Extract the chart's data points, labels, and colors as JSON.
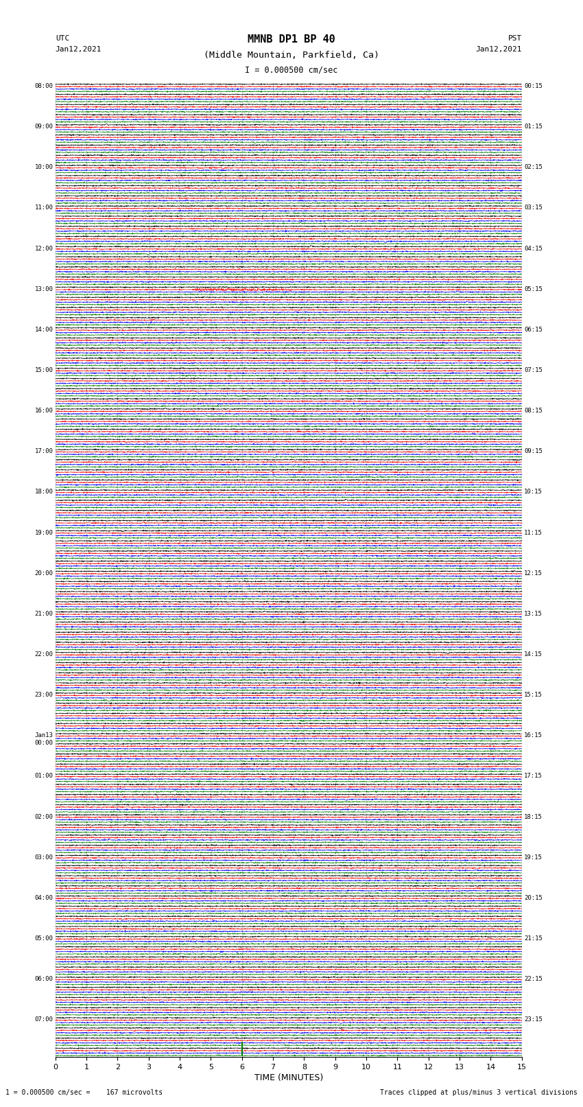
{
  "title_line1": "MMNB DP1 BP 40",
  "title_line2": "(Middle Mountain, Parkfield, Ca)",
  "scale_label": "I = 0.000500 cm/sec",
  "left_label": "UTC",
  "left_date": "Jan12,2021",
  "right_label": "PST",
  "right_date": "Jan12,2021",
  "xlabel": "TIME (MINUTES)",
  "bottom_left_text": "1 = 0.000500 cm/sec =    167 microvolts",
  "bottom_right_text": "Traces clipped at plus/minus 3 vertical divisions",
  "utc_times": [
    "08:00",
    "",
    "",
    "",
    "09:00",
    "",
    "",
    "",
    "10:00",
    "",
    "",
    "",
    "11:00",
    "",
    "",
    "",
    "12:00",
    "",
    "",
    "",
    "13:00",
    "",
    "",
    "",
    "14:00",
    "",
    "",
    "",
    "15:00",
    "",
    "",
    "",
    "16:00",
    "",
    "",
    "",
    "17:00",
    "",
    "",
    "",
    "18:00",
    "",
    "",
    "",
    "19:00",
    "",
    "",
    "",
    "20:00",
    "",
    "",
    "",
    "21:00",
    "",
    "",
    "",
    "22:00",
    "",
    "",
    "",
    "23:00",
    "",
    "",
    "",
    "Jan13\n00:00",
    "",
    "",
    "",
    "01:00",
    "",
    "",
    "",
    "02:00",
    "",
    "",
    "",
    "03:00",
    "",
    "",
    "",
    "04:00",
    "",
    "",
    "",
    "05:00",
    "",
    "",
    "",
    "06:00",
    "",
    "",
    "",
    "07:00",
    "",
    "",
    ""
  ],
  "pst_times": [
    "00:15",
    "",
    "",
    "",
    "01:15",
    "",
    "",
    "",
    "02:15",
    "",
    "",
    "",
    "03:15",
    "",
    "",
    "",
    "04:15",
    "",
    "",
    "",
    "05:15",
    "",
    "",
    "",
    "06:15",
    "",
    "",
    "",
    "07:15",
    "",
    "",
    "",
    "08:15",
    "",
    "",
    "",
    "09:15",
    "",
    "",
    "",
    "10:15",
    "",
    "",
    "",
    "11:15",
    "",
    "",
    "",
    "12:15",
    "",
    "",
    "",
    "13:15",
    "",
    "",
    "",
    "14:15",
    "",
    "",
    "",
    "15:15",
    "",
    "",
    "",
    "16:15",
    "",
    "",
    "",
    "17:15",
    "",
    "",
    "",
    "18:15",
    "",
    "",
    "",
    "19:15",
    "",
    "",
    "",
    "20:15",
    "",
    "",
    "",
    "21:15",
    "",
    "",
    "",
    "22:15",
    "",
    "",
    "",
    "23:15",
    "",
    "",
    ""
  ],
  "trace_colors": [
    "black",
    "red",
    "blue",
    "green"
  ],
  "num_rows": 96,
  "traces_per_row": 4,
  "x_min": 0,
  "x_max": 15,
  "x_ticks": [
    0,
    1,
    2,
    3,
    4,
    5,
    6,
    7,
    8,
    9,
    10,
    11,
    12,
    13,
    14,
    15
  ],
  "noise_amplitude": 0.12,
  "special_row_red": 20,
  "special_amplitude": 0.45,
  "bg_color": "white",
  "fig_width": 8.5,
  "fig_height": 16.13,
  "dpi": 100
}
